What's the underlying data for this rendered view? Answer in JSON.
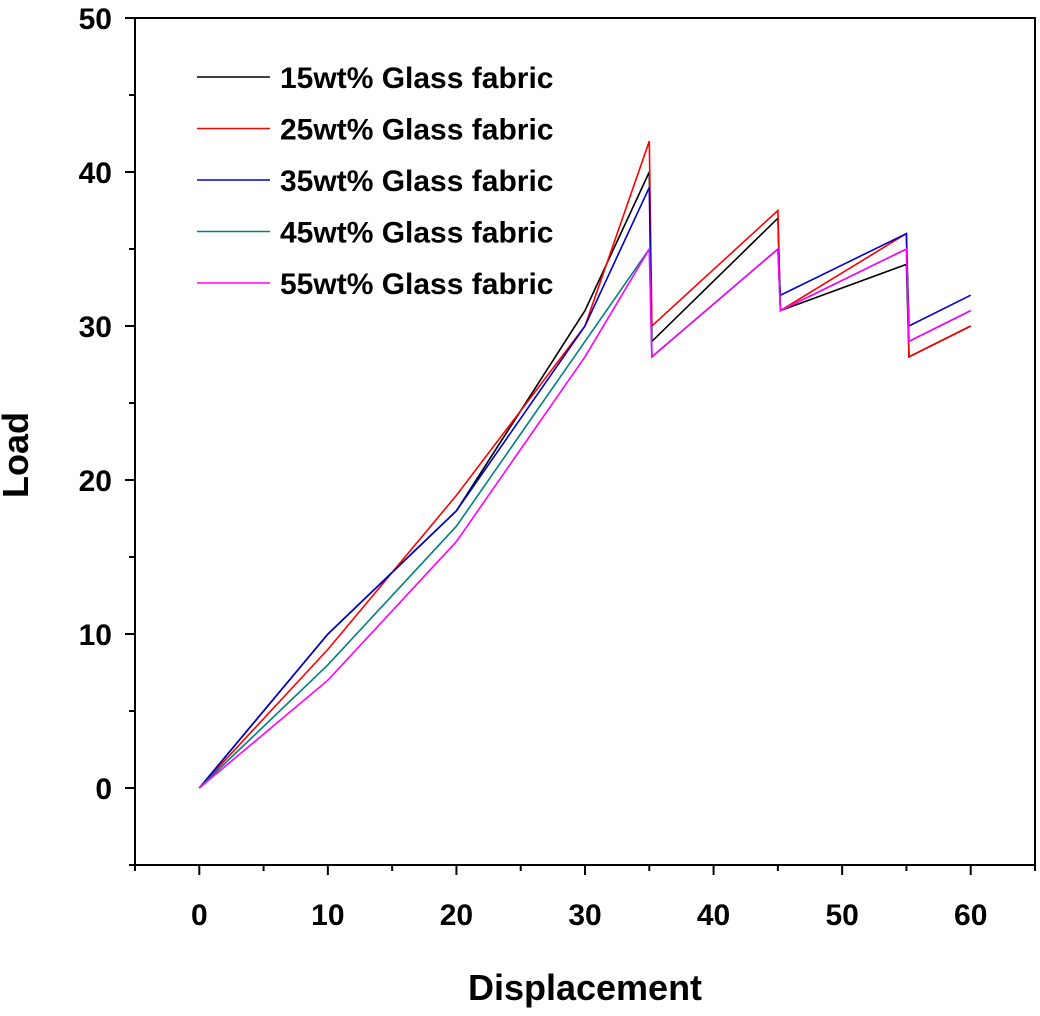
{
  "chart_data": {
    "type": "line",
    "title": "",
    "xlabel": "Displacement",
    "ylabel": "Load",
    "xlim": [
      -5,
      65
    ],
    "ylim": [
      -5,
      50
    ],
    "xticks": [
      0,
      10,
      20,
      30,
      40,
      50,
      60
    ],
    "yticks": [
      0,
      10,
      20,
      30,
      40,
      50
    ],
    "x_tick_labels": [
      "0",
      "10",
      "20",
      "30",
      "40",
      "50",
      "60"
    ],
    "y_tick_labels": [
      "0",
      "10",
      "20",
      "30",
      "40",
      "50"
    ],
    "grid": false,
    "legend_position": "top-left",
    "series": [
      {
        "name": "15wt% Glass fabric",
        "color": "#000000",
        "x": [
          0,
          10,
          20,
          30,
          35,
          35.2,
          45,
          45.2,
          55,
          55.2,
          60
        ],
        "y": [
          0,
          10,
          18,
          31,
          40,
          29,
          37,
          31,
          34,
          28,
          30
        ]
      },
      {
        "name": "25wt% Glass fabric",
        "color": "#ff0000",
        "x": [
          0,
          10,
          20,
          30,
          35,
          35.2,
          45,
          45.2,
          55,
          55.2,
          60
        ],
        "y": [
          0,
          9,
          19,
          30,
          42,
          30,
          37.5,
          31,
          36,
          28,
          30
        ]
      },
      {
        "name": "35wt% Glass fabric",
        "color": "#0000cc",
        "x": [
          0,
          10,
          20,
          30,
          35,
          35.2,
          45,
          45.2,
          55,
          55.2,
          60
        ],
        "y": [
          0,
          10,
          18,
          30,
          39,
          28,
          35,
          32,
          36,
          30,
          32
        ]
      },
      {
        "name": "45wt% Glass fabric",
        "color": "#008080",
        "x": [
          0,
          10,
          20,
          30,
          35,
          35.2,
          45,
          45.2,
          55,
          55.2,
          60
        ],
        "y": [
          0,
          8,
          17,
          29,
          35,
          28,
          35,
          31,
          35,
          29,
          31
        ]
      },
      {
        "name": "55wt% Glass fabric",
        "color": "#ff00ff",
        "x": [
          0,
          10,
          20,
          30,
          35,
          35.2,
          45,
          45.2,
          55,
          55.2,
          60
        ],
        "y": [
          0,
          7,
          16,
          28,
          35,
          28,
          35,
          31,
          35,
          29,
          31
        ]
      }
    ]
  }
}
